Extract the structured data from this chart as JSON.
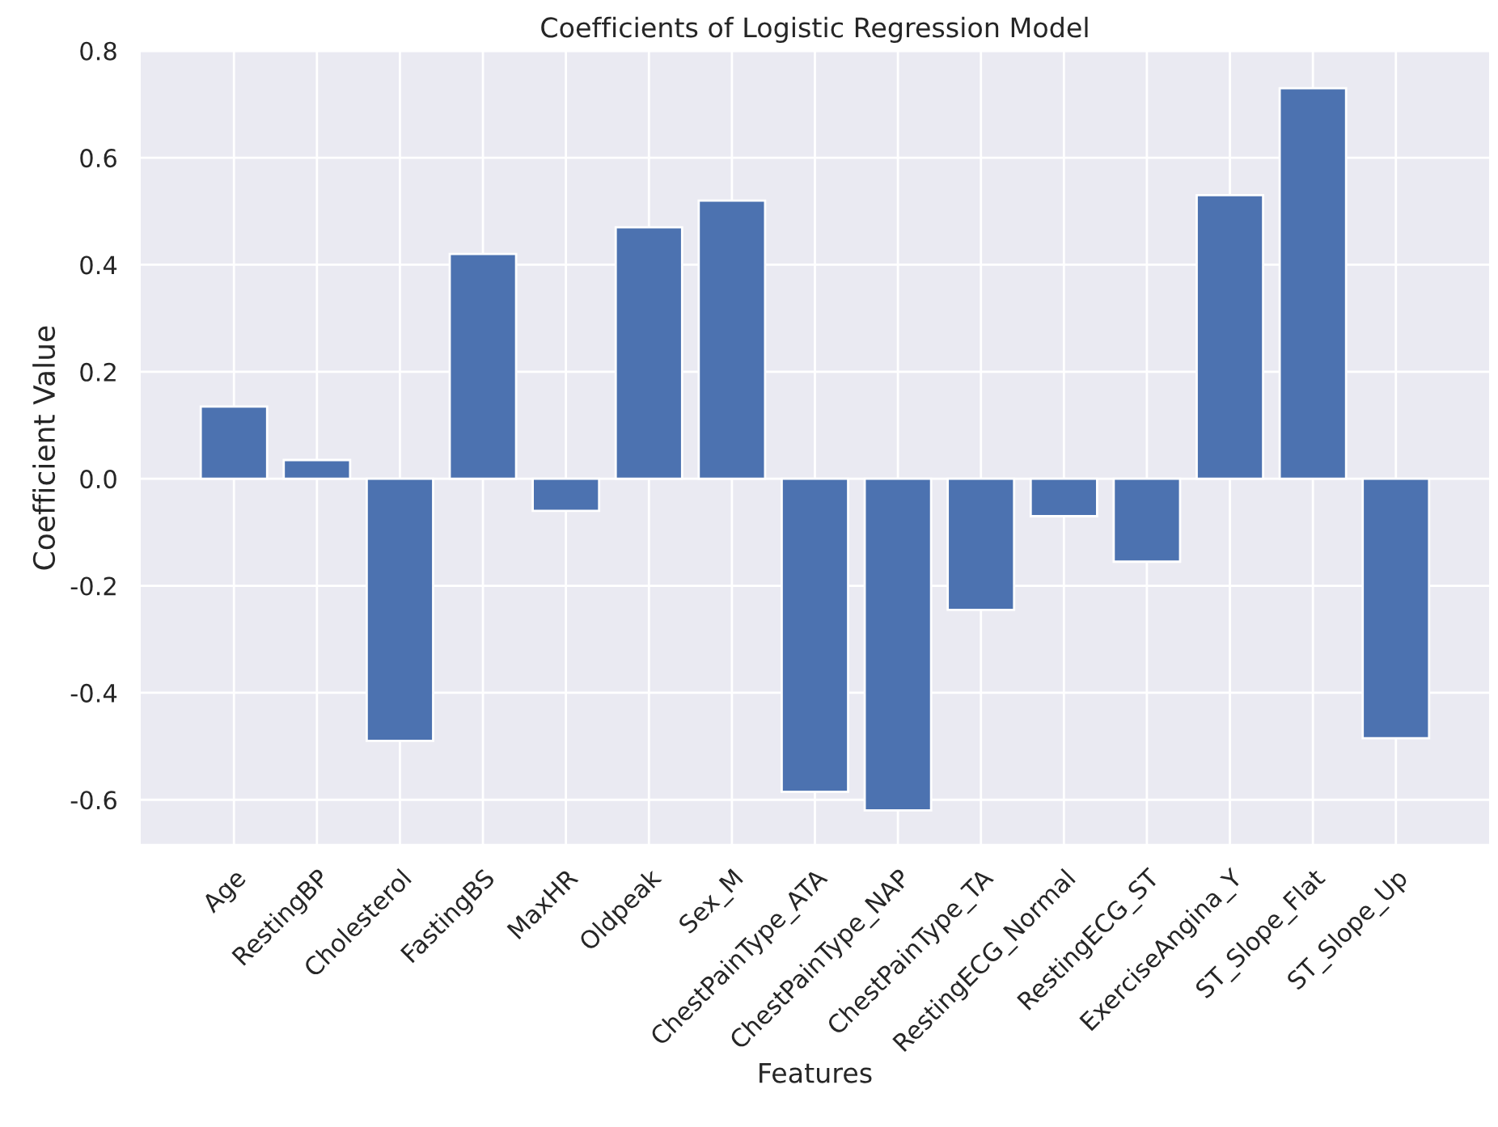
{
  "chart_data": {
    "type": "bar",
    "title": "Coefficients of Logistic Regression Model",
    "xlabel": "Features",
    "ylabel": "Coefficient Value",
    "categories": [
      "Age",
      "RestingBP",
      "Cholesterol",
      "FastingBS",
      "MaxHR",
      "Oldpeak",
      "Sex_M",
      "ChestPainType_ATA",
      "ChestPainType_NAP",
      "ChestPainType_TA",
      "RestingECG_Normal",
      "RestingECG_ST",
      "ExerciseAngina_Y",
      "ST_Slope_Flat",
      "ST_Slope_Up"
    ],
    "values": [
      0.135,
      0.035,
      -0.49,
      0.42,
      -0.06,
      0.47,
      0.52,
      -0.585,
      -0.62,
      -0.245,
      -0.07,
      -0.155,
      0.53,
      0.73,
      -0.485
    ],
    "color": "#4c72b0",
    "ylim": [
      -0.685,
      0.8
    ],
    "yticks": [
      -0.6,
      -0.4,
      -0.2,
      {
        "value": 0,
        "label": "0.0"
      },
      0.2,
      0.4,
      0.6,
      0.8
    ],
    "grid": true
  }
}
